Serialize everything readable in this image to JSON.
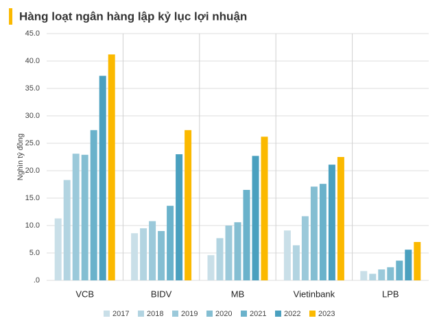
{
  "chart_data": {
    "type": "bar",
    "title": "Hàng loạt ngân hàng lập kỷ lục lợi nhuận",
    "y_label": "Nghìn tỷ đồng",
    "categories": [
      "VCB",
      "BIDV",
      "MB",
      "Vietinbank",
      "LPB"
    ],
    "series": [
      {
        "name": "2017",
        "color": "#c9dfe8",
        "values": [
          11.3,
          8.6,
          4.6,
          9.1,
          1.7
        ]
      },
      {
        "name": "2018",
        "color": "#b2d4e1",
        "values": [
          18.3,
          9.5,
          7.7,
          6.4,
          1.2
        ]
      },
      {
        "name": "2019",
        "color": "#9bc9da",
        "values": [
          23.1,
          10.8,
          10.0,
          11.7,
          2.0
        ]
      },
      {
        "name": "2020",
        "color": "#84bed2",
        "values": [
          22.9,
          9.0,
          10.6,
          17.1,
          2.4
        ]
      },
      {
        "name": "2021",
        "color": "#6ab2cb",
        "values": [
          27.4,
          13.6,
          16.5,
          17.6,
          3.6
        ]
      },
      {
        "name": "2022",
        "color": "#4aa0bf",
        "values": [
          37.3,
          23.0,
          22.7,
          21.1,
          5.6
        ]
      },
      {
        "name": "2023",
        "color": "#fbb900",
        "values": [
          41.2,
          27.4,
          26.2,
          22.5,
          7.0
        ]
      }
    ],
    "ylim": [
      0,
      45
    ],
    "yticks": [
      {
        "value": 0,
        "label": ".0"
      },
      {
        "value": 5,
        "label": "5.0"
      },
      {
        "value": 10,
        "label": "10.0"
      },
      {
        "value": 15,
        "label": "15.0"
      },
      {
        "value": 20,
        "label": "20.0"
      },
      {
        "value": 25,
        "label": "25.0"
      },
      {
        "value": 30,
        "label": "30.0"
      },
      {
        "value": 35,
        "label": "35.0"
      },
      {
        "value": 40,
        "label": "40.0"
      },
      {
        "value": 45,
        "label": "45.0"
      }
    ],
    "grid": true,
    "legend": "bottom"
  }
}
